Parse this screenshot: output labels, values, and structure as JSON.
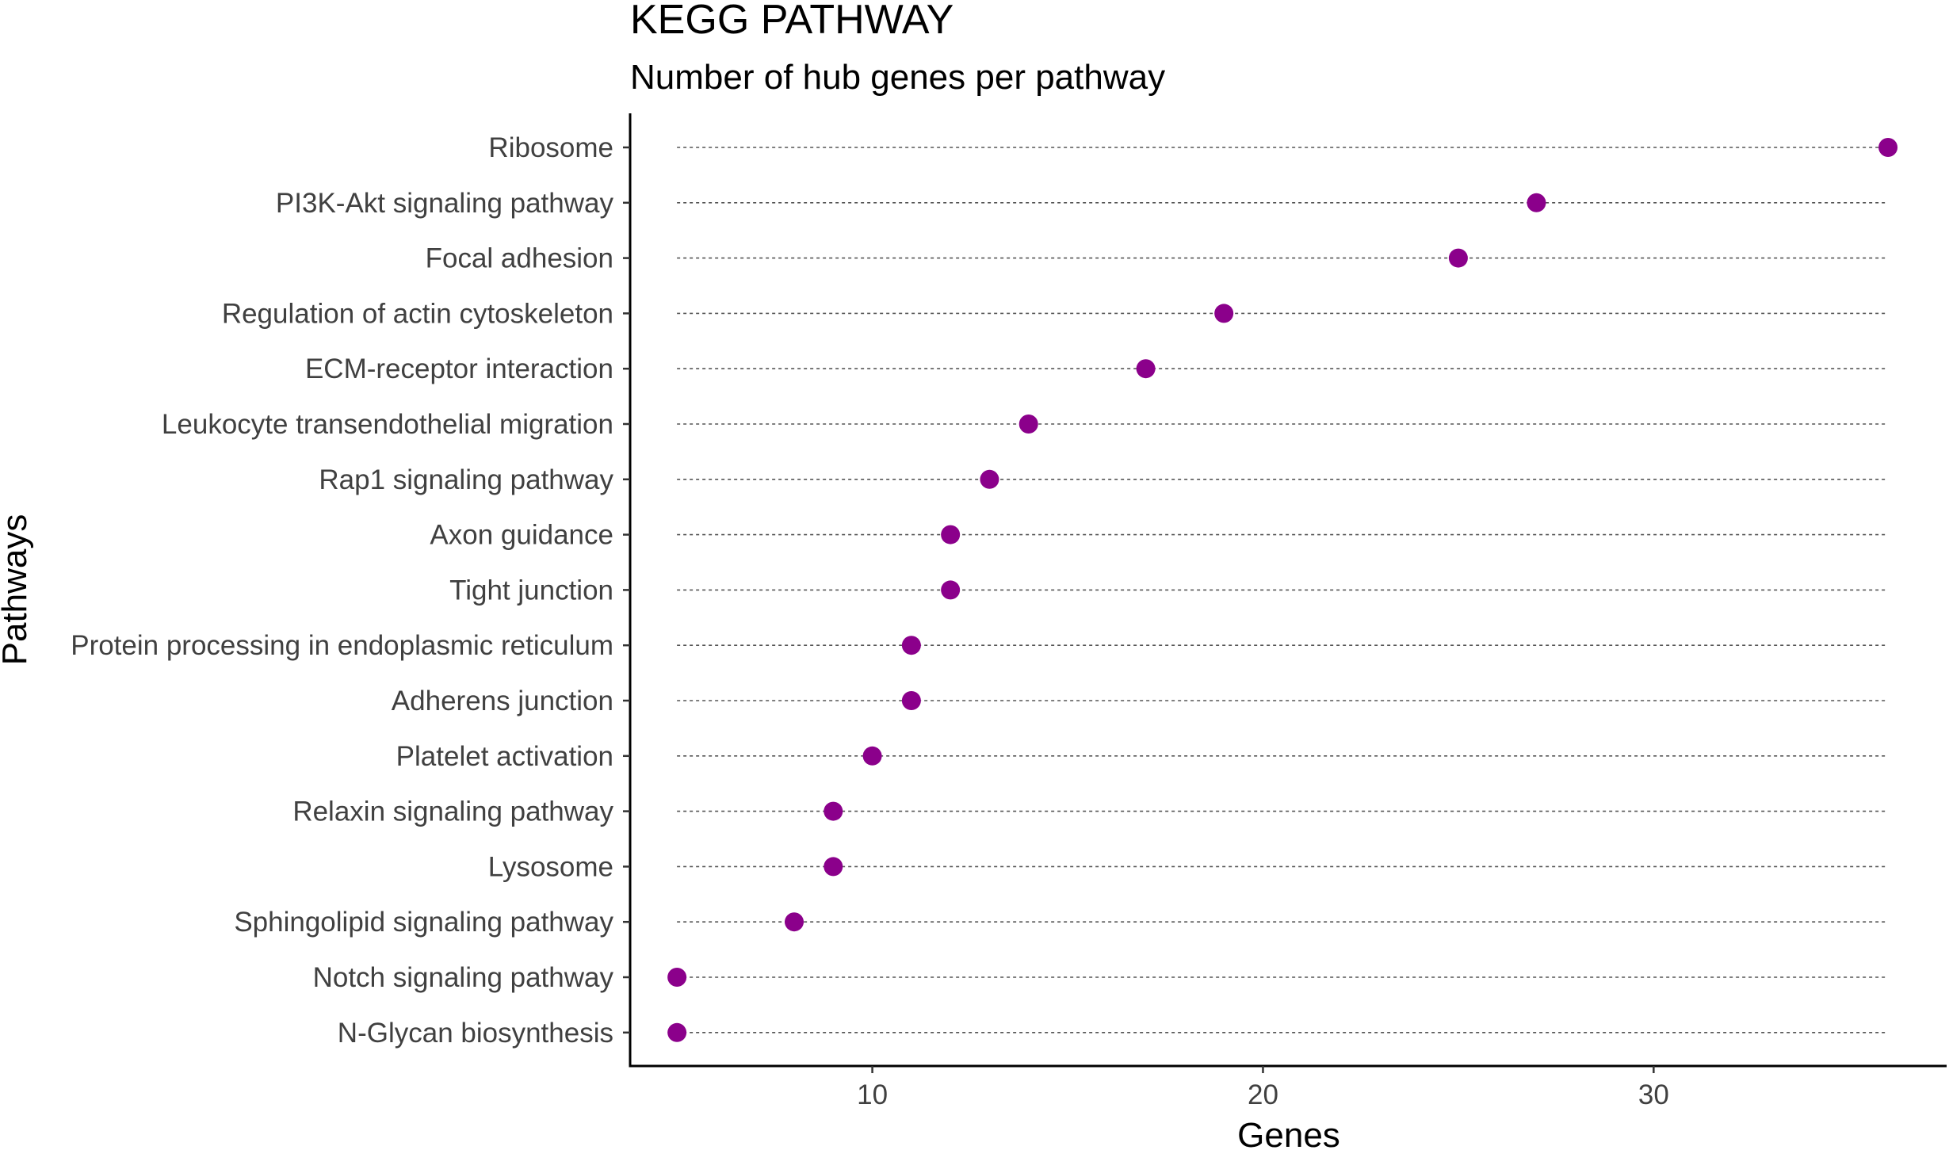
{
  "chart_data": {
    "type": "scatter",
    "title": "KEGG PATHWAY",
    "subtitle": "Number of hub genes per pathway",
    "xlabel": "Genes",
    "ylabel": "Pathways",
    "xlim": [
      3.8,
      37.5
    ],
    "xticks": [
      10,
      20,
      30
    ],
    "point_color": "#8B008B",
    "categories": [
      "Ribosome",
      "PI3K-Akt signaling pathway",
      "Focal adhesion",
      "Regulation of actin cytoskeleton",
      "ECM-receptor interaction",
      "Leukocyte transendothelial migration",
      "Rap1 signaling pathway",
      "Axon guidance",
      "Tight junction",
      "Protein processing in endoplasmic reticulum",
      "Adherens junction",
      "Platelet activation",
      "Relaxin signaling pathway",
      "Lysosome",
      "Sphingolipid signaling pathway",
      "Notch signaling pathway",
      "N-Glycan biosynthesis"
    ],
    "values": [
      36,
      27,
      25,
      19,
      17,
      14,
      13,
      12,
      12,
      11,
      11,
      10,
      9,
      9,
      8,
      5,
      5
    ],
    "guide_range": [
      5,
      36
    ]
  }
}
